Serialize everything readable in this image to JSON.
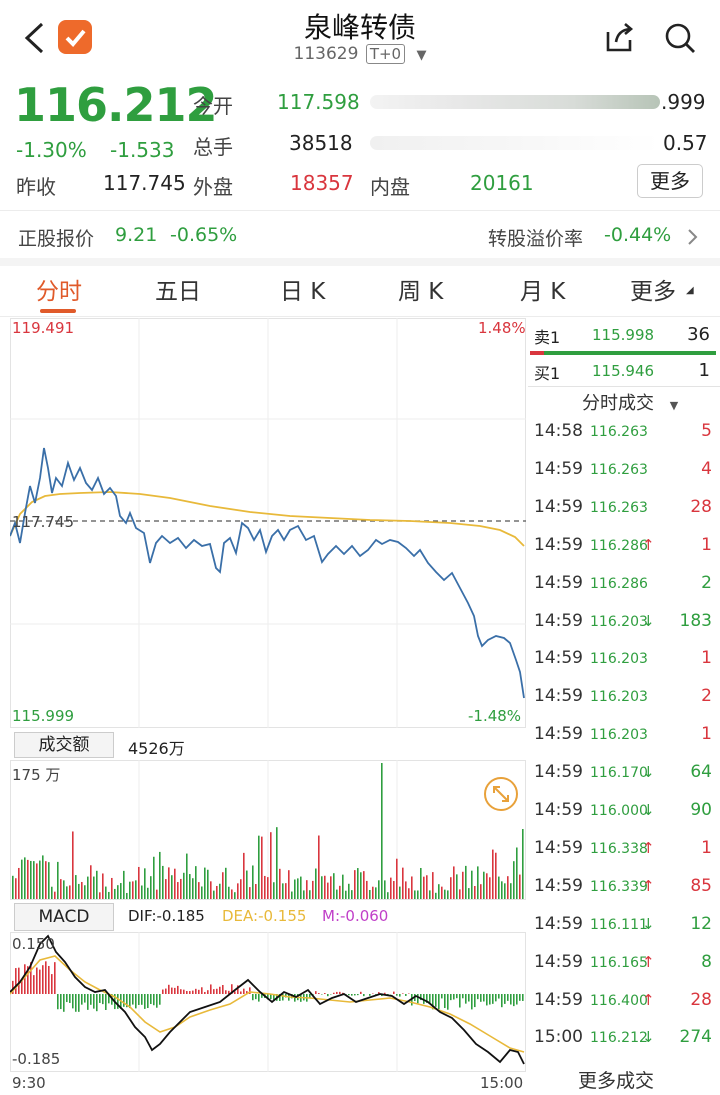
{
  "header": {
    "title": "泉峰转债",
    "code": "113629",
    "tag": "T+0",
    "back_icon": "chevron-left-icon",
    "share_icon": "share-icon",
    "search_icon": "search-icon"
  },
  "quote": {
    "price": "116.212",
    "change_pct": "-1.30%",
    "change_amt": "-1.533",
    "open_label": "今开",
    "open": "117.598",
    "high_partial": ".999",
    "volume_label": "总手",
    "volume": "38518",
    "turnover_partial": "0.57",
    "prev_close_label": "昨收",
    "prev_close": "117.745",
    "outer_label": "外盘",
    "outer": "18357",
    "inner_label": "内盘",
    "inner": "20161",
    "more_label": "更多"
  },
  "stock_row": {
    "stock_label": "正股报价",
    "stock_price": "9.21",
    "stock_change": "-0.65%",
    "premium_label": "转股溢价率",
    "premium": "-0.44%"
  },
  "tabs": [
    {
      "label": "分时"
    },
    {
      "label": "五日"
    },
    {
      "label": "日 K"
    },
    {
      "label": "周 K"
    },
    {
      "label": "月 K"
    },
    {
      "label": "更多"
    }
  ],
  "intraday": {
    "top_price": "119.491",
    "top_pct": "1.48%",
    "ref_price": "117.745",
    "bottom_price": "115.999",
    "bottom_pct": "-1.48%",
    "volume_tab": "成交额",
    "volume_total": "4526万",
    "volume_max": "175 万",
    "macd_tab": "MACD",
    "dif": "DIF:-0.185",
    "dea": "DEA:-0.155",
    "m": "M:-0.060",
    "macd_top": "0.150",
    "macd_bottom": "-0.185",
    "time_start": "9:30",
    "time_end": "15:00"
  },
  "orderbook": {
    "sell_label": "卖1",
    "sell_price": "115.998",
    "sell_vol": "36",
    "buy_label": "买1",
    "buy_price": "115.946",
    "buy_vol": "1",
    "trades_title": "分时成交",
    "more_trades": "更多成交"
  },
  "trades": [
    {
      "time": "14:58",
      "price": "116.263",
      "arrow": "",
      "vol": "5",
      "color": "red"
    },
    {
      "time": "14:59",
      "price": "116.263",
      "arrow": "",
      "vol": "4",
      "color": "red"
    },
    {
      "time": "14:59",
      "price": "116.263",
      "arrow": "",
      "vol": "28",
      "color": "red"
    },
    {
      "time": "14:59",
      "price": "116.286",
      "arrow": "↑",
      "vol": "1",
      "color": "red"
    },
    {
      "time": "14:59",
      "price": "116.286",
      "arrow": "",
      "vol": "2",
      "color": "green"
    },
    {
      "time": "14:59",
      "price": "116.203",
      "arrow": "↓",
      "vol": "183",
      "color": "green"
    },
    {
      "time": "14:59",
      "price": "116.203",
      "arrow": "",
      "vol": "1",
      "color": "red"
    },
    {
      "time": "14:59",
      "price": "116.203",
      "arrow": "",
      "vol": "2",
      "color": "red"
    },
    {
      "time": "14:59",
      "price": "116.203",
      "arrow": "",
      "vol": "1",
      "color": "red"
    },
    {
      "time": "14:59",
      "price": "116.170",
      "arrow": "↓",
      "vol": "64",
      "color": "green"
    },
    {
      "time": "14:59",
      "price": "116.000",
      "arrow": "↓",
      "vol": "90",
      "color": "green"
    },
    {
      "time": "14:59",
      "price": "116.338",
      "arrow": "↑",
      "vol": "1",
      "color": "red"
    },
    {
      "time": "14:59",
      "price": "116.339",
      "arrow": "↑",
      "vol": "85",
      "color": "red"
    },
    {
      "time": "14:59",
      "price": "116.111",
      "arrow": "↓",
      "vol": "12",
      "color": "green"
    },
    {
      "time": "14:59",
      "price": "116.165",
      "arrow": "↑",
      "vol": "8",
      "color": "green"
    },
    {
      "time": "14:59",
      "price": "116.400",
      "arrow": "↑",
      "vol": "28",
      "color": "red"
    },
    {
      "time": "15:00",
      "price": "116.212",
      "arrow": "↓",
      "vol": "274",
      "color": "green"
    }
  ],
  "colors": {
    "up": "#d9363e",
    "down": "#2f9e3f",
    "accent": "#e05a2a",
    "price_line": "#3a6fa8",
    "avg_line": "#e8b93a"
  }
}
